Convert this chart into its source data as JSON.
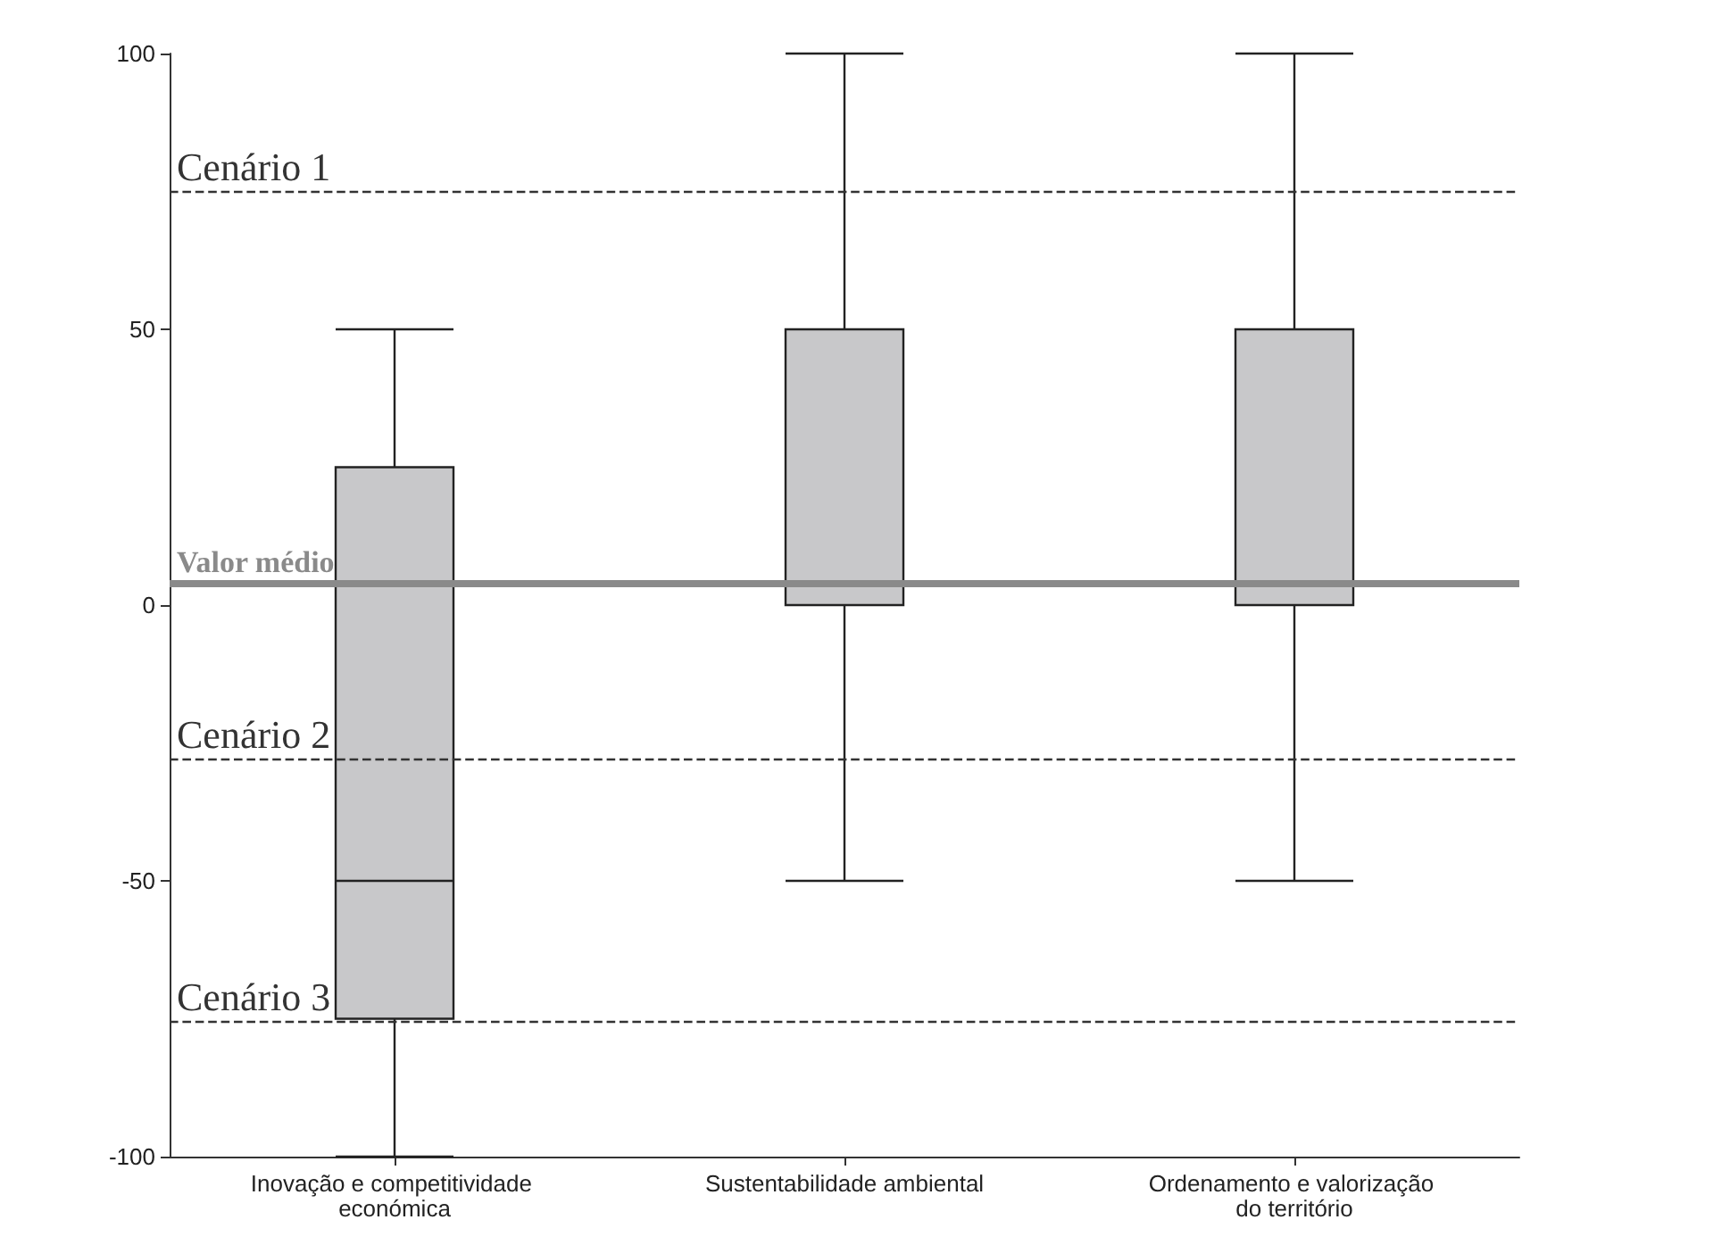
{
  "chart_data": {
    "type": "box",
    "categories": [
      "Inovação e competitividade económica",
      "Sustentabilidade ambiental",
      "Ordenamento e valorização do território"
    ],
    "series": [
      {
        "color": "#c8c8ca",
        "boxes": [
          {
            "low": -100,
            "q1": -75,
            "median": -50,
            "q3": 25,
            "high": 50
          },
          {
            "low": -50,
            "q1": 0,
            "median": 50,
            "q3": 50,
            "high": 100
          },
          {
            "low": -50,
            "q1": 0,
            "median": 0,
            "q3": 50,
            "high": 100
          }
        ]
      }
    ],
    "ylim": [
      -100,
      100
    ],
    "yticks": [
      -100,
      -50,
      0,
      50,
      100
    ],
    "grid": false,
    "ref_lines": [
      {
        "axis": "y",
        "value": 75,
        "label": "Cenário 1",
        "color": "#333333",
        "line_style": "dashed"
      },
      {
        "axis": "y",
        "value": 4,
        "label": "Valor médio",
        "color": "#8a8a8a",
        "line_style": "solid"
      },
      {
        "axis": "y",
        "value": -28,
        "label": "Cenário 2",
        "color": "#333333",
        "line_style": "dashed"
      },
      {
        "axis": "y",
        "value": -75.5,
        "label": "Cenário 3",
        "color": "#333333",
        "line_style": "dashed"
      }
    ]
  }
}
